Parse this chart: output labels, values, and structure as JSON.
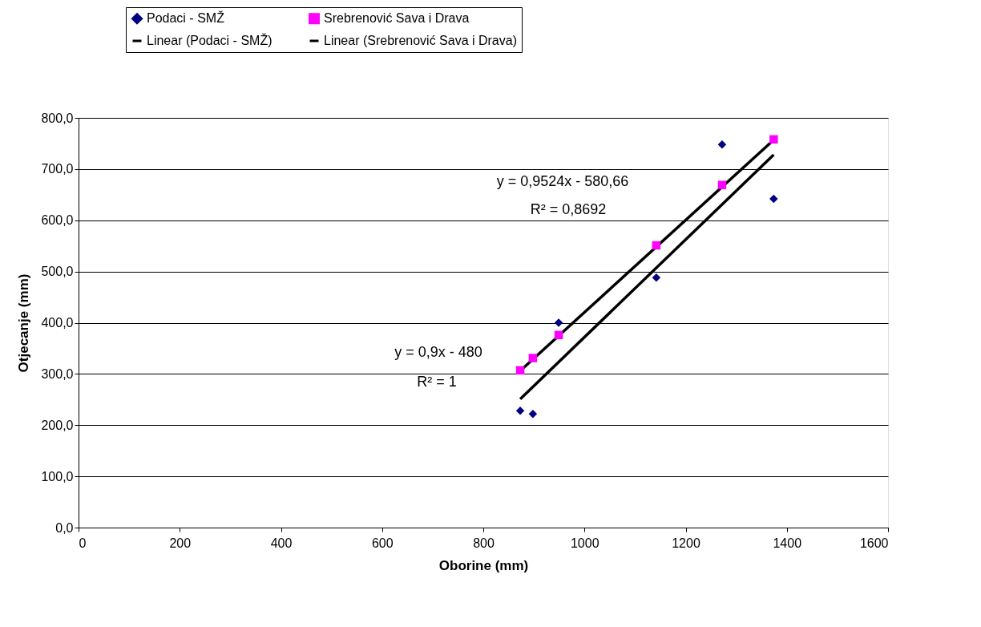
{
  "chart_data": {
    "type": "scatter",
    "xlabel": "Oborine (mm)",
    "ylabel": "Otjecanje (mm)",
    "xlim": [
      0,
      1600
    ],
    "xticks": [
      0,
      200,
      400,
      600,
      800,
      1000,
      1200,
      1400,
      1600
    ],
    "ylim": [
      0,
      800
    ],
    "yticks": [
      {
        "value": 0,
        "label": "0,0"
      },
      {
        "value": 100,
        "label": "100,0"
      },
      {
        "value": 200,
        "label": "200,0"
      },
      {
        "value": 300,
        "label": "300,0"
      },
      {
        "value": 400,
        "label": "400,0"
      },
      {
        "value": 500,
        "label": "500,0"
      },
      {
        "value": 600,
        "label": "600,0"
      },
      {
        "value": 700,
        "label": "700,0"
      },
      {
        "value": 800,
        "label": "800,0"
      }
    ],
    "grid": "y",
    "legend": "top",
    "series": [
      {
        "name": "Podaci - SMŽ",
        "marker": "diamond",
        "color": "#000080",
        "x": [
          873,
          898,
          949,
          1142,
          1272,
          1374
        ],
        "values": [
          228,
          222,
          400,
          488,
          748,
          642
        ]
      },
      {
        "name": "Srebrenović Sava i Drava",
        "marker": "square",
        "color": "#ff00ff",
        "x": [
          873,
          898,
          949,
          1142,
          1272,
          1374
        ],
        "values": [
          307,
          331,
          376,
          551,
          669,
          758
        ]
      },
      {
        "name": "Linear (Podaci - SMŽ)",
        "type": "line",
        "marker": "none",
        "color": "#000000",
        "x": [
          873,
          1374
        ],
        "values": [
          251,
          728
        ]
      },
      {
        "name": "Linear (Srebrenović Sava i Drava)",
        "type": "line",
        "marker": "none",
        "color": "#000000",
        "x": [
          873,
          1374
        ],
        "values": [
          306,
          757
        ]
      }
    ],
    "annotations": [
      "y = 0,9524x - 580,66",
      "R² = 0,8692",
      "y = 0,9x - 480",
      "R² = 1"
    ]
  }
}
